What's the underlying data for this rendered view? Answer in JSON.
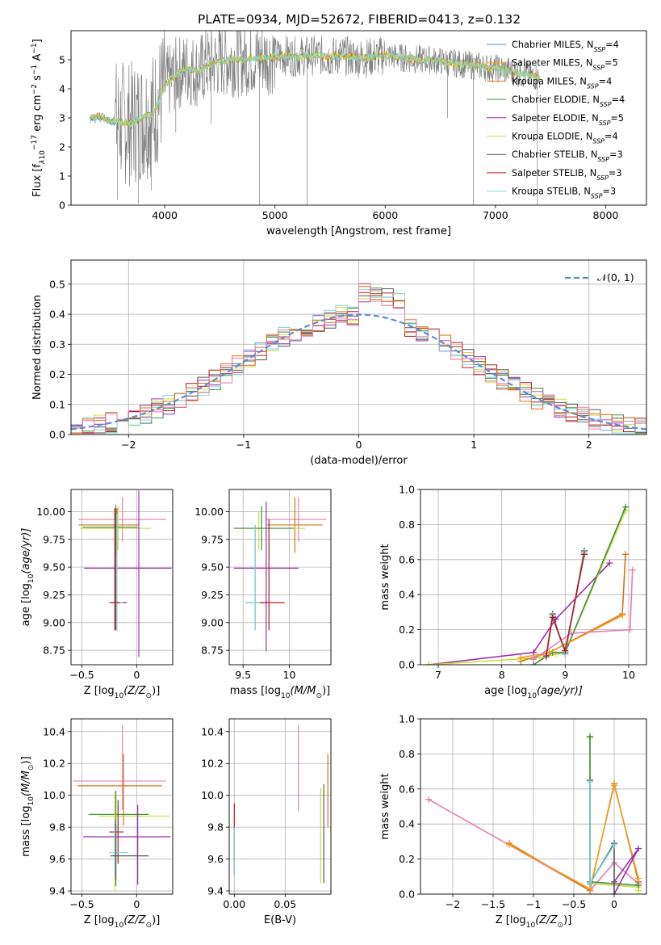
{
  "title": "PLATE=0934, MJD=52672, FIBERID=0413, z=0.132",
  "colors": {
    "Chabrier MILES": "#5b8bd4",
    "Salpeter MILES": "#f0a020",
    "Kroupa MILES": "#d8731f",
    "Chabrier ELODIE": "#3f8f3f",
    "Salpeter ELODIE": "#9b2fae",
    "Kroupa ELODIE": "#c9dc3a",
    "Chabrier STELIB": "#555555",
    "Salpeter STELIB": "#b5161d",
    "Kroupa STELIB": "#7fd3dc",
    "pink": "#e57fb4",
    "grey": "#808080"
  },
  "chart_data": [
    {
      "id": "spectrum",
      "type": "line",
      "xlabel": "wavelength [Angstrom, rest frame]",
      "ylabel_parts": [
        "Flux [f",
        "λ",
        "10",
        "−17",
        " erg cm",
        "−2",
        " s",
        "−1",
        " A",
        "−1",
        "]"
      ],
      "xlim": [
        3150,
        8370
      ],
      "ylim": [
        0,
        6
      ],
      "xticks": [
        4000,
        5000,
        6000,
        7000,
        8000
      ],
      "yticks": [
        0,
        1,
        2,
        3,
        4,
        5
      ],
      "grid": false,
      "legend_position": "right",
      "legend": [
        {
          "name": "Chabrier MILES",
          "nssp": "4",
          "color": "Chabrier MILES"
        },
        {
          "name": "Salpeter MILES",
          "nssp": "5",
          "color": "Salpeter MILES"
        },
        {
          "name": "Kroupa MILES",
          "nssp": "4",
          "color": "Kroupa MILES"
        },
        {
          "name": "Chabrier ELODIE",
          "nssp": "4",
          "color": "Chabrier ELODIE"
        },
        {
          "name": "Salpeter ELODIE",
          "nssp": "5",
          "color": "Salpeter ELODIE"
        },
        {
          "name": "Kroupa ELODIE",
          "nssp": "4",
          "color": "Kroupa ELODIE"
        },
        {
          "name": "Chabrier STELIB",
          "nssp": "3",
          "color": "Chabrier STELIB"
        },
        {
          "name": "Salpeter STELIB",
          "nssp": "3",
          "color": "Salpeter STELIB"
        },
        {
          "name": "Kroupa STELIB",
          "nssp": "3",
          "color": "Kroupa STELIB"
        }
      ],
      "continuum": [
        [
          3320,
          3.0
        ],
        [
          3400,
          3.05
        ],
        [
          3500,
          2.9
        ],
        [
          3600,
          2.85
        ],
        [
          3700,
          2.8
        ],
        [
          3800,
          3.0
        ],
        [
          3900,
          3.2
        ],
        [
          4000,
          4.1
        ],
        [
          4100,
          4.5
        ],
        [
          4200,
          4.7
        ],
        [
          4300,
          4.6
        ],
        [
          4400,
          4.85
        ],
        [
          4500,
          4.95
        ],
        [
          4600,
          5.0
        ],
        [
          4700,
          5.0
        ],
        [
          4800,
          5.05
        ],
        [
          4900,
          5.05
        ],
        [
          5000,
          5.1
        ],
        [
          5100,
          5.15
        ],
        [
          5200,
          5.1
        ],
        [
          5300,
          5.15
        ],
        [
          5400,
          5.15
        ],
        [
          5500,
          5.1
        ],
        [
          5600,
          5.15
        ],
        [
          5700,
          5.1
        ],
        [
          5800,
          5.05
        ],
        [
          5900,
          5.1
        ],
        [
          6000,
          5.15
        ],
        [
          6100,
          5.1
        ],
        [
          6200,
          5.05
        ],
        [
          6300,
          5.0
        ],
        [
          6400,
          5.0
        ],
        [
          6500,
          4.95
        ],
        [
          6600,
          4.9
        ],
        [
          6700,
          4.85
        ],
        [
          6800,
          4.8
        ],
        [
          6900,
          4.75
        ],
        [
          7000,
          4.7
        ],
        [
          7100,
          4.65
        ],
        [
          7200,
          4.55
        ],
        [
          7300,
          4.45
        ],
        [
          7400,
          4.4
        ]
      ],
      "spikes": [
        [
          3570,
          0.2
        ],
        [
          3760,
          0.05
        ],
        [
          3800,
          1.1
        ],
        [
          3880,
          0.5
        ],
        [
          4100,
          2.5
        ],
        [
          4340,
          3.8
        ],
        [
          4420,
          2.8
        ],
        [
          4860,
          0.0
        ],
        [
          5290,
          0.0
        ],
        [
          6565,
          3.0
        ],
        [
          6800,
          0.0
        ],
        [
          7380,
          0.0
        ]
      ]
    },
    {
      "id": "residuals",
      "type": "histogram",
      "xlabel": "(data-model)/error",
      "ylabel": "Normed distribution",
      "xlim": [
        -2.5,
        2.5
      ],
      "ylim": [
        0,
        0.58
      ],
      "xticks": [
        -2,
        -1,
        0,
        1,
        2
      ],
      "yticks": [
        0.0,
        0.1,
        0.2,
        0.3,
        0.4,
        0.5
      ],
      "grid": true,
      "legend_position": "top-right",
      "legend_label": "𝒩(0, 1)",
      "bin_width": 0.1,
      "bin_start": -2.5,
      "reference": {
        "name": "N(0,1)",
        "mean": 0,
        "sigma": 1,
        "color": "Chabrier MILES"
      },
      "series_colors": [
        "Chabrier ELODIE",
        "Salpeter ELODIE",
        "Kroupa ELODIE",
        "Chabrier STELIB",
        "Salpeter STELIB",
        "Kroupa STELIB",
        "Kroupa MILES",
        "pink"
      ]
    },
    {
      "id": "age-vs-Z",
      "type": "scatter",
      "xlabel_parts": [
        "Z [log",
        "10",
        "(Z/Z",
        "⊙",
        ")]"
      ],
      "ylabel_parts": [
        "age  [log",
        "10",
        "(age/yr)]"
      ],
      "xlim": [
        -0.6,
        0.33
      ],
      "ylim": [
        8.62,
        10.2
      ],
      "xticks": [
        -0.5,
        0.0
      ],
      "yticks": [
        8.75,
        9.0,
        9.25,
        9.5,
        9.75,
        10.0
      ],
      "grid": true,
      "points": [
        {
          "x": -0.13,
          "y": 9.93,
          "xerr": [
            0.4,
            0.4
          ],
          "yerr": [
            0.2,
            0.2
          ],
          "color": "pink"
        },
        {
          "x": -0.18,
          "y": 9.88,
          "xerr": [
            0.35,
            0.2
          ],
          "yerr": [
            0.2,
            0.15
          ],
          "color": "Kroupa MILES"
        },
        {
          "x": -0.17,
          "y": 9.85,
          "xerr": [
            0.35,
            0.3
          ],
          "yerr": [
            0.2,
            0.2
          ],
          "color": "Kroupa ELODIE"
        },
        {
          "x": -0.19,
          "y": 9.86,
          "xerr": [
            0.3,
            0.2
          ],
          "yerr": [
            0.25,
            0.2
          ],
          "color": "Chabrier ELODIE"
        },
        {
          "x": 0.02,
          "y": 9.49,
          "xerr": [
            0.5,
            0.3
          ],
          "yerr": [
            0.8,
            0.7
          ],
          "color": "Salpeter ELODIE"
        },
        {
          "x": -0.19,
          "y": 9.18,
          "xerr": [
            0.05,
            0.1
          ],
          "yerr": [
            0.25,
            0.85
          ],
          "color": "Chabrier STELIB"
        },
        {
          "x": -0.18,
          "y": 9.18,
          "xerr": [
            0.05,
            0.05
          ],
          "yerr": [
            0.25,
            0.8
          ],
          "color": "Kroupa STELIB"
        },
        {
          "x": -0.2,
          "y": 9.18,
          "xerr": [
            0.05,
            0.05
          ],
          "yerr": [
            0.25,
            0.85
          ],
          "color": "Salpeter STELIB"
        }
      ]
    },
    {
      "id": "age-vs-mass",
      "type": "scatter",
      "xlabel_parts": [
        "mass [log",
        "10",
        "(M/M",
        "⊙",
        ")]"
      ],
      "ylabel_parts": [],
      "xlim": [
        9.35,
        10.45
      ],
      "ylim": [
        8.62,
        10.2
      ],
      "xticks": [
        9.5,
        10.0
      ],
      "yticks": [
        8.75,
        9.0,
        9.25,
        9.5,
        9.75,
        10.0
      ],
      "grid": true,
      "points": [
        {
          "x": 10.1,
          "y": 9.93,
          "xerr": [
            0.35,
            0.3
          ],
          "yerr": [
            0.2,
            0.2
          ],
          "color": "pink"
        },
        {
          "x": 10.06,
          "y": 9.88,
          "xerr": [
            0.3,
            0.3
          ],
          "yerr": [
            0.25,
            0.25
          ],
          "color": "Kroupa MILES"
        },
        {
          "x": 9.67,
          "y": 9.85,
          "xerr": [
            0.25,
            0.5
          ],
          "yerr": [
            0.2,
            0.15
          ],
          "color": "Kroupa ELODIE"
        },
        {
          "x": 9.7,
          "y": 9.85,
          "xerr": [
            0.3,
            0.35
          ],
          "yerr": [
            0.2,
            0.2
          ],
          "color": "Chabrier ELODIE"
        },
        {
          "x": 9.75,
          "y": 9.49,
          "xerr": [
            0.35,
            0.35
          ],
          "yerr": [
            0.75,
            0.6
          ],
          "color": "Salpeter ELODIE"
        },
        {
          "x": 9.63,
          "y": 9.18,
          "xerr": [
            0.1,
            0.05
          ],
          "yerr": [
            0.25,
            0.7
          ],
          "color": "Chabrier STELIB"
        },
        {
          "x": 9.63,
          "y": 9.18,
          "xerr": [
            0.1,
            0.1
          ],
          "yerr": [
            0.25,
            0.7
          ],
          "color": "Kroupa STELIB"
        },
        {
          "x": 9.78,
          "y": 9.18,
          "xerr": [
            0.1,
            0.17
          ],
          "yerr": [
            0.25,
            0.75
          ],
          "color": "Salpeter STELIB"
        }
      ]
    },
    {
      "id": "weight-vs-age",
      "type": "line",
      "xlabel_parts": [
        "age  [log",
        "10",
        "(age/yr)]"
      ],
      "ylabel": "mass weight",
      "xlim": [
        6.72,
        10.28
      ],
      "ylim": [
        0,
        1
      ],
      "xticks": [
        7,
        8,
        9,
        10
      ],
      "yticks": [
        0.0,
        0.2,
        0.4,
        0.6,
        0.8,
        1.0
      ],
      "grid": true,
      "series": [
        {
          "color": "Salpeter ELODIE",
          "x": [
            6.85,
            8.5,
            8.85,
            9.7
          ],
          "y": [
            0.0,
            0.07,
            0.26,
            0.58
          ]
        },
        {
          "color": "Kroupa ELODIE",
          "x": [
            6.85,
            8.6,
            8.85,
            9.0,
            9.95
          ],
          "y": [
            0.0,
            0.04,
            0.06,
            0.07,
            0.88
          ]
        },
        {
          "color": "Chabrier ELODIE",
          "x": [
            8.5,
            8.8,
            9.0,
            9.95
          ],
          "y": [
            0.0,
            0.07,
            0.07,
            0.9
          ]
        },
        {
          "color": "Kroupa MILES",
          "x": [
            8.3,
            8.75,
            9.9,
            9.95
          ],
          "y": [
            0.02,
            0.07,
            0.29,
            0.63
          ]
        },
        {
          "color": "Salpeter MILES",
          "x": [
            8.3,
            8.75,
            9.9
          ],
          "y": [
            0.04,
            0.07,
            0.28
          ]
        },
        {
          "color": "pink",
          "x": [
            8.5,
            9.1,
            10.02,
            10.06
          ],
          "y": [
            0.03,
            0.18,
            0.2,
            0.54
          ]
        },
        {
          "color": "Chabrier STELIB",
          "x": [
            8.7,
            8.8,
            9.0,
            9.3
          ],
          "y": [
            0.04,
            0.29,
            0.06,
            0.65
          ]
        },
        {
          "color": "Kroupa STELIB",
          "x": [
            8.7,
            8.8,
            9.0,
            9.3
          ],
          "y": [
            0.04,
            0.28,
            0.06,
            0.64
          ]
        },
        {
          "color": "Salpeter STELIB",
          "x": [
            8.7,
            8.8,
            9.0,
            9.3
          ],
          "y": [
            0.05,
            0.27,
            0.08,
            0.63
          ]
        }
      ]
    },
    {
      "id": "mass-vs-Z",
      "type": "scatter",
      "xlabel_parts": [
        "Z [log",
        "10",
        "(Z/Z",
        "⊙",
        ")]"
      ],
      "ylabel_parts": [
        "mass [log",
        "10",
        "(M/M",
        "⊙",
        ")]"
      ],
      "xlim": [
        -0.6,
        0.33
      ],
      "ylim": [
        9.38,
        10.48
      ],
      "xticks": [
        -0.5,
        0.0
      ],
      "yticks": [
        9.4,
        9.6,
        9.8,
        10.0,
        10.2,
        10.4
      ],
      "grid": true,
      "points": [
        {
          "x": -0.13,
          "y": 10.09,
          "xerr": [
            0.45,
            0.4
          ],
          "yerr": [
            0.18,
            0.35
          ],
          "color": "pink"
        },
        {
          "x": -0.12,
          "y": 10.06,
          "xerr": [
            0.42,
            0.35
          ],
          "yerr": [
            0.25,
            0.2
          ],
          "color": "Kroupa MILES"
        },
        {
          "x": -0.19,
          "y": 9.88,
          "xerr": [
            0.25,
            0.3
          ],
          "yerr": [
            0.45,
            0.15
          ],
          "color": "Chabrier ELODIE"
        },
        {
          "x": -0.2,
          "y": 9.87,
          "xerr": [
            0.15,
            0.5
          ],
          "yerr": [
            0.47,
            0.15
          ],
          "color": "Kroupa ELODIE"
        },
        {
          "x": -0.17,
          "y": 9.77,
          "xerr": [
            0.08,
            0.05
          ],
          "yerr": [
            0.2,
            0.2
          ],
          "color": "Salpeter STELIB"
        },
        {
          "x": 0.01,
          "y": 9.74,
          "xerr": [
            0.5,
            0.3
          ],
          "yerr": [
            0.3,
            0.2
          ],
          "color": "Salpeter ELODIE"
        },
        {
          "x": -0.2,
          "y": 9.64,
          "xerr": [
            0.05,
            0.12
          ],
          "yerr": [
            0.15,
            0.2
          ],
          "color": "Kroupa STELIB"
        },
        {
          "x": -0.19,
          "y": 9.62,
          "xerr": [
            0.05,
            0.3
          ],
          "yerr": [
            0.15,
            0.2
          ],
          "color": "Chabrier STELIB"
        }
      ]
    },
    {
      "id": "mass-vs-EBV",
      "type": "scatter",
      "xlabel": "E(B-V)",
      "xlim": [
        -0.005,
        0.095
      ],
      "ylim": [
        9.38,
        10.48
      ],
      "xticks": [
        0.0,
        0.05
      ],
      "xtick_labels": [
        "0.00",
        "0.05"
      ],
      "yticks": [
        9.4,
        9.6,
        9.8,
        10.0,
        10.2,
        10.4
      ],
      "grid": true,
      "points": [
        {
          "x": 0.0,
          "y": 9.85,
          "yerr": [
            0.35,
            0.1
          ],
          "color": "Salpeter STELIB"
        },
        {
          "x": 0.0,
          "y": 9.7,
          "yerr": [
            0.2,
            0.1
          ],
          "color": "Kroupa STELIB"
        },
        {
          "x": 0.063,
          "y": 10.17,
          "yerr": [
            0.27,
            0.27
          ],
          "color": "pink"
        },
        {
          "x": 0.085,
          "y": 9.75,
          "yerr": [
            0.3,
            0.3
          ],
          "color": "Kroupa ELODIE"
        },
        {
          "x": 0.088,
          "y": 9.77,
          "yerr": [
            0.32,
            0.3
          ],
          "color": "Chabrier STELIB"
        },
        {
          "x": 0.092,
          "y": 10.06,
          "yerr": [
            0.26,
            0.2
          ],
          "color": "Kroupa MILES"
        }
      ]
    },
    {
      "id": "weight-vs-Z",
      "type": "line",
      "xlabel_parts": [
        "Z [log",
        "10",
        "(Z/Z",
        "⊙",
        ")]"
      ],
      "ylabel": "mass weight",
      "xlim": [
        -2.4,
        0.4
      ],
      "ylim": [
        0,
        1
      ],
      "xticks": [
        -2.0,
        -1.5,
        -1.0,
        -0.5,
        0.0
      ],
      "yticks": [
        0.0,
        0.2,
        0.4,
        0.6,
        0.8,
        1.0
      ],
      "grid": true,
      "series": [
        {
          "color": "pink",
          "x": [
            -2.3,
            -0.3,
            0.0,
            0.3
          ],
          "y": [
            0.54,
            0.02,
            0.18,
            0.06
          ]
        },
        {
          "color": "Kroupa MILES",
          "x": [
            -1.3,
            -0.3,
            0.0,
            0.3
          ],
          "y": [
            0.29,
            0.02,
            0.63,
            0.07
          ]
        },
        {
          "color": "Salpeter MILES",
          "x": [
            -1.3,
            -0.3,
            0.0,
            0.3
          ],
          "y": [
            0.28,
            0.03,
            0.62,
            0.09
          ]
        },
        {
          "color": "Kroupa ELODIE",
          "x": [
            -0.3,
            -0.3,
            0.3,
            0.3
          ],
          "y": [
            0.89,
            0.06,
            0.04,
            0.02
          ]
        },
        {
          "color": "Chabrier ELODIE",
          "x": [
            -0.3,
            -0.3,
            0.3
          ],
          "y": [
            0.9,
            0.07,
            0.05
          ]
        },
        {
          "color": "Salpeter ELODIE",
          "x": [
            0.0,
            0.3,
            0.0
          ],
          "y": [
            0.07,
            0.26,
            0.0
          ]
        },
        {
          "color": "Chabrier STELIB",
          "x": [
            -0.3,
            -0.3,
            0.0,
            0.0
          ],
          "y": [
            0.65,
            0.06,
            0.29,
            0.0
          ]
        },
        {
          "color": "Kroupa STELIB",
          "x": [
            -0.3,
            -0.3,
            0.0
          ],
          "y": [
            0.64,
            0.06,
            0.28
          ]
        }
      ]
    }
  ]
}
